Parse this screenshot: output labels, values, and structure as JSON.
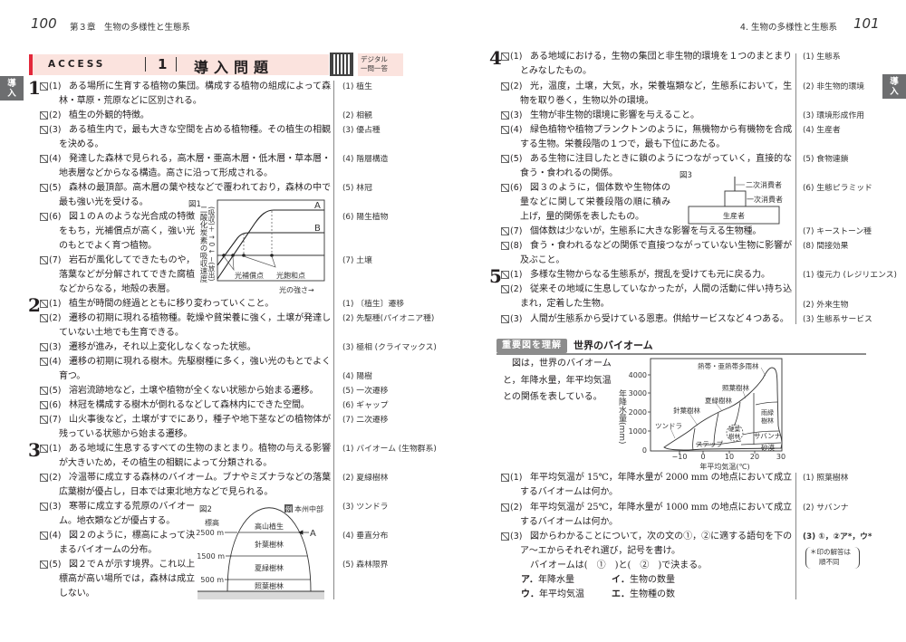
{
  "left_header": {
    "page": "100",
    "chapter": "第３章　生物の多様性と生態系"
  },
  "right_header": {
    "section": "4. 生物の多様性と生態系",
    "page": "101"
  },
  "banner": {
    "access": "ACCESS",
    "number": "1",
    "title": "導入問題",
    "digital_line1": "デジタル",
    "digital_line2": "一問一答"
  },
  "side_tab": {
    "line1": "導",
    "line2": "入"
  },
  "groups": [
    {
      "number": "1",
      "items": [
        {
          "label": "(1)",
          "text": "ある場所に生育する植物の集団。構成する植物の組成によって森林・草原・荒原などに区別される。",
          "answer": "植生"
        },
        {
          "label": "(2)",
          "text": "植生の外観的特徴。",
          "answer": "相観"
        },
        {
          "label": "(3)",
          "text": "ある植生内で，最も大きな空間を占める植物種。その植生の相観を決める。",
          "answer": "優占種"
        },
        {
          "label": "(4)",
          "text": "発達した森林で見られる，高木層・亜高木層・低木層・草本層・地表層などからなる構造。高さに沿って形成される。",
          "answer": "階層構造"
        },
        {
          "label": "(5)",
          "text": "森林の最頂部。高木層の葉や枝などで覆われており，森林の中で最も強い光を受ける。",
          "answer": "林冠"
        },
        {
          "label": "(6)",
          "text": "図１のＡのような光合成の特徴をもち，光補償点が高く，強い光のもとでよく育つ植物。",
          "answer": "陽生植物"
        },
        {
          "label": "(7)",
          "text": "岩石が風化してできたものや，落葉などが分解されてできた腐植などからなる，地殻の表層。",
          "answer": "土壌"
        }
      ]
    },
    {
      "number": "2",
      "items": [
        {
          "label": "(1)",
          "text": "植生が時間の経過とともに移り変わっていくこと。",
          "answer": "〔植生〕遷移"
        },
        {
          "label": "(2)",
          "text": "遷移の初期に現れる植物種。乾燥や貧栄養に強く，土壌が発達していない土地でも生育できる。",
          "answer": "先駆種(パイオニア種)"
        },
        {
          "label": "(3)",
          "text": "遷移が進み，それ以上変化しなくなった状態。",
          "answer": "極相 (クライマックス)"
        },
        {
          "label": "(4)",
          "text": "遷移の初期に現れる樹木。先駆樹種に多く，強い光のもとでよく育つ。",
          "answer": "陽樹"
        },
        {
          "label": "(5)",
          "text": "溶岩流跡地など，土壌や植物が全くない状態から始まる遷移。",
          "answer": "一次遷移"
        },
        {
          "label": "(6)",
          "text": "林冠を構成する樹木が倒れるなどして森林内にできた空間。",
          "answer": "ギャップ"
        },
        {
          "label": "(7)",
          "text": "山火事後など，土壌がすでにあり，種子や地下茎などの植物体が残っている状態から始まる遷移。",
          "answer": "二次遷移"
        }
      ]
    },
    {
      "number": "3",
      "items": [
        {
          "label": "(1)",
          "text": "ある地域に生息するすべての生物のまとまり。植物の与える影響が大きいため，その植生の相観によって分類される。",
          "answer": "バイオーム (生物群系)"
        },
        {
          "label": "(2)",
          "text": "冷温帯に成立する森林のバイオーム。ブナやミズナラなどの落葉広葉樹が優占し，日本では東北地方などで見られる。",
          "answer": "夏緑樹林"
        },
        {
          "label": "(3)",
          "text": "寒帯に成立する荒原のバイオーム。地衣類などが優占する。",
          "answer": "ツンドラ"
        },
        {
          "label": "(4)",
          "text": "図２のように，標高によって決まるバイオームの分布。",
          "answer": "垂直分布"
        },
        {
          "label": "(5)",
          "text": "図２でＡが示す境界。これ以上標高が高い場所では，森林は成立しない。",
          "answer": "森林限界"
        }
      ]
    },
    {
      "number": "4",
      "items": [
        {
          "label": "(1)",
          "text": "ある地域における，生物の集団と非生物的環境を１つのまとまりとみなしたもの。",
          "answer": "生態系"
        },
        {
          "label": "(2)",
          "text": "光，温度，土壌，大気，水，栄養塩類など，生態系において，生物を取り巻く，生物以外の環境。",
          "answer": "非生物的環境"
        },
        {
          "label": "(3)",
          "text": "生物が非生物的環境に影響を与えること。",
          "answer": "環境形成作用"
        },
        {
          "label": "(4)",
          "text": "緑色植物や植物プランクトンのように，無機物から有機物を合成する生物。栄養段階の１つで，最も下位にあたる。",
          "answer": "生産者"
        },
        {
          "label": "(5)",
          "text": "ある生物に注目したときに鎖のようにつながっていく，直接的な食う・食われるの関係。",
          "answer": "食物連鎖"
        },
        {
          "label": "(6)",
          "text": "図３のように，個体数や生物体の量などに関して栄養段階の順に積み上げ，量的関係を表したもの。",
          "answer": "生態ピラミッド"
        },
        {
          "label": "(7)",
          "text": "個体数は少ないが，生態系に大きな影響を与える生物種。",
          "answer": "キーストーン種"
        },
        {
          "label": "(8)",
          "text": "食う・食われるなどの関係で直接つながっていない生物に影響が及ぶこと。",
          "answer": "間接効果"
        }
      ]
    },
    {
      "number": "5",
      "items": [
        {
          "label": "(1)",
          "text": "多様な生物からなる生態系が，撹乱を受けても元に戻る力。",
          "answer": "復元力 (レジリエンス)"
        },
        {
          "label": "(2)",
          "text": "従来その地域に生息していなかったが，人間の活動に伴い持ち込まれ，定着した生物。",
          "answer": "外来生物"
        },
        {
          "label": "(3)",
          "text": "人間が生態系から受けている恩恵。供給サービスなど４つある。",
          "answer": "生態系サービス"
        }
      ]
    }
  ],
  "figure1": {
    "caption": "図1",
    "ylabel": "二酸化炭素の吸収速度",
    "yscale": "(吸収)＋ ↑ 0 ↓ −(放出)",
    "curve_a": "A",
    "curve_b": "B",
    "compensation": "光補償点",
    "saturation": "光飽和点",
    "xlabel": "光の強さ→"
  },
  "figure2": {
    "caption": "図2",
    "example": "例",
    "region": "本州中部",
    "ylabel": "標高",
    "ticks": [
      "2500 m",
      "1500 m",
      "500 m"
    ],
    "zones": [
      "高山植生",
      "針葉樹林",
      "夏緑樹林",
      "照葉樹林"
    ],
    "marker": "A"
  },
  "figure3": {
    "caption": "図3",
    "levels": [
      "二次消費者",
      "一次消費者",
      "生産者"
    ]
  },
  "biome_section": {
    "badge": "重要図を理解",
    "title": "世界のバイオーム",
    "intro": "図は，世界のバイオームと，年降水量，年平均気温との関係を表している。",
    "chart": {
      "ylabel": "年降水量(mm)",
      "xlabel": "年平均気温(℃)",
      "yticks": [
        "4000",
        "3000",
        "2000",
        "1000",
        "0"
      ],
      "xticks": [
        "−10",
        "0",
        "10",
        "20",
        "30"
      ],
      "regions": [
        "熱帯・亜熱帯多雨林",
        "照葉樹林",
        "夏緑樹林",
        "針葉樹林",
        "ツンドラ",
        "雨緑",
        "樹林",
        "硬葉",
        "樹林",
        "サバンナ",
        "ステップ",
        "砂漠"
      ]
    },
    "questions": [
      {
        "label": "(1)",
        "text": "年平均気温が 15℃，年降水量が 2000 mm の地点において成立するバイオームは何か。",
        "answer": "照葉樹林"
      },
      {
        "label": "(2)",
        "text": "年平均気温が 25℃，年降水量が 1000 mm の地点において成立するバイオームは何か。",
        "answer": "サバンナ"
      },
      {
        "label": "(3)",
        "text": "図からわかることについて，次の文の①，②に適する語句を下のア～エからそれぞれ選び，記号を書け。",
        "answer": "①，②ア*，ウ*"
      }
    ],
    "sentence": "バイオームは(　①　)と(　②　)で決まる。",
    "options": [
      {
        "key": "ア．",
        "text": "年降水量"
      },
      {
        "key": "イ．",
        "text": "生物の数量"
      },
      {
        "key": "ウ．",
        "text": "年平均気温"
      },
      {
        "key": "エ．",
        "text": "生物種の数"
      }
    ],
    "answer_note_line1": "＊印の解答は",
    "answer_note_line2": "順不同"
  }
}
